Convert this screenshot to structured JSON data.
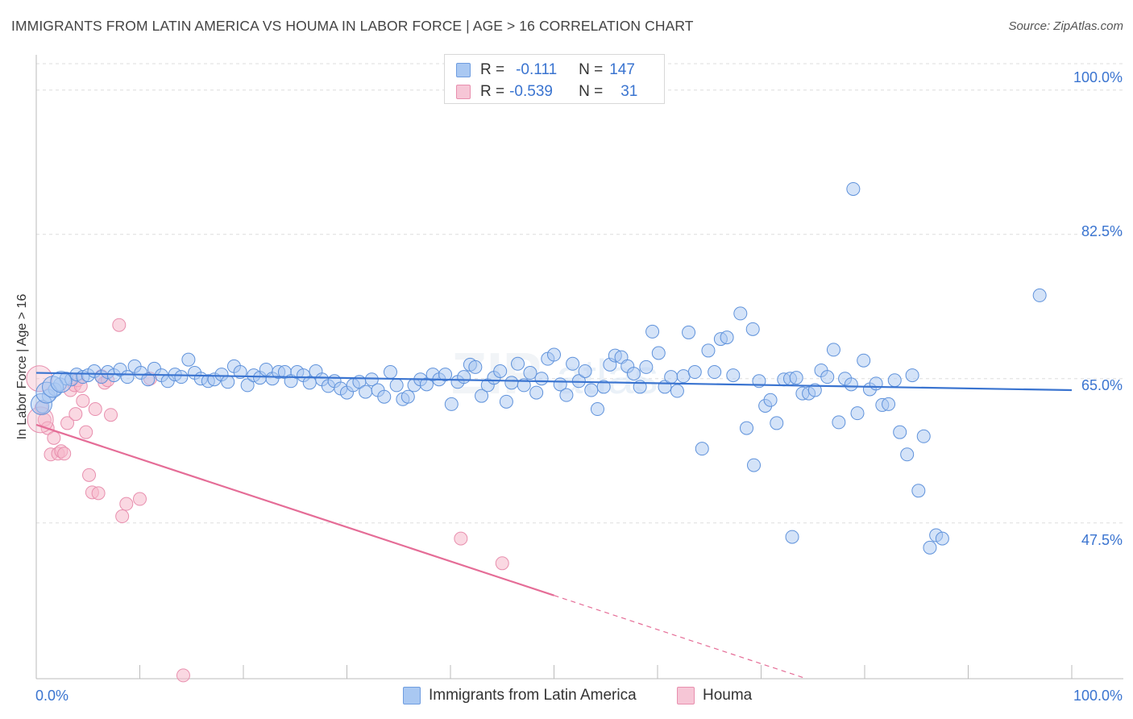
{
  "title": "IMMIGRANTS FROM LATIN AMERICA VS HOUMA IN LABOR FORCE | AGE > 16 CORRELATION CHART",
  "source": "Source: ZipAtlas.com",
  "colors": {
    "blue": "#3a74d0",
    "blue_fill": "#a9c8f2",
    "pink": "#e56d97",
    "pink_fill": "#f6b8cb",
    "axis_text": "#3a74d0",
    "grid": "#dddddd"
  },
  "legend": {
    "rows": [
      {
        "r_label": "R =",
        "r_value": "-0.111",
        "n_label": "N =",
        "n_value": "147"
      },
      {
        "r_label": "R =",
        "r_value": "-0.539",
        "n_label": "N =",
        "n_value": "31"
      }
    ]
  },
  "bottom_legend": {
    "series1": "Immigrants from Latin America",
    "series2": "Houma"
  },
  "chart_data": {
    "type": "scatter",
    "title": "IMMIGRANTS FROM LATIN AMERICA VS HOUMA IN LABOR FORCE | AGE > 16 CORRELATION CHART",
    "xlabel": "",
    "ylabel": "In Labor Force | Age > 16",
    "xlim": [
      0,
      100
    ],
    "ylim": [
      28.6,
      103.2
    ],
    "x_tick_labels": [
      "0.0%",
      "100.0%"
    ],
    "y_ticks": [
      47.5,
      65.0,
      82.5,
      100.0
    ],
    "y_tick_labels": [
      "47.5%",
      "65.0%",
      "82.5%",
      "100.0%"
    ],
    "grid": true,
    "legend_position": "top-center",
    "series": [
      {
        "name": "Immigrants from Latin America",
        "color": "#3a74d0",
        "trend": {
          "x": [
            0,
            100
          ],
          "y": [
            65.7,
            63.6
          ]
        },
        "points": [
          [
            0.6,
            61.6
          ],
          [
            1.2,
            62.9
          ],
          [
            1.8,
            63.7
          ],
          [
            2.3,
            64.3
          ],
          [
            2.9,
            65.0
          ],
          [
            3.4,
            64.9
          ],
          [
            3.9,
            65.5
          ],
          [
            4.5,
            65.2
          ],
          [
            5.0,
            65.4
          ],
          [
            5.6,
            65.9
          ],
          [
            6.3,
            65.2
          ],
          [
            6.9,
            65.8
          ],
          [
            7.5,
            65.4
          ],
          [
            8.1,
            66.1
          ],
          [
            8.8,
            65.2
          ],
          [
            9.5,
            66.5
          ],
          [
            10.1,
            65.7
          ],
          [
            10.8,
            64.9
          ],
          [
            11.4,
            66.2
          ],
          [
            12.1,
            65.4
          ],
          [
            12.7,
            64.7
          ],
          [
            13.4,
            65.5
          ],
          [
            14.0,
            65.2
          ],
          [
            14.7,
            67.3
          ],
          [
            15.3,
            65.7
          ],
          [
            15.9,
            65.0
          ],
          [
            16.6,
            64.7
          ],
          [
            17.2,
            64.9
          ],
          [
            17.9,
            65.5
          ],
          [
            18.5,
            64.6
          ],
          [
            19.1,
            66.5
          ],
          [
            19.7,
            65.8
          ],
          [
            20.4,
            64.2
          ],
          [
            21.0,
            65.4
          ],
          [
            21.6,
            65.1
          ],
          [
            22.2,
            66.1
          ],
          [
            22.8,
            65.0
          ],
          [
            23.4,
            65.8
          ],
          [
            24.0,
            65.8
          ],
          [
            24.6,
            64.7
          ],
          [
            25.2,
            65.8
          ],
          [
            25.8,
            65.4
          ],
          [
            26.4,
            64.5
          ],
          [
            27.0,
            65.9
          ],
          [
            27.6,
            64.9
          ],
          [
            28.2,
            64.1
          ],
          [
            28.8,
            64.7
          ],
          [
            29.4,
            63.8
          ],
          [
            30.0,
            63.3
          ],
          [
            30.6,
            64.2
          ],
          [
            31.2,
            64.6
          ],
          [
            31.8,
            63.4
          ],
          [
            32.4,
            64.9
          ],
          [
            33.0,
            63.6
          ],
          [
            33.6,
            62.8
          ],
          [
            34.2,
            65.8
          ],
          [
            34.8,
            64.2
          ],
          [
            35.4,
            62.5
          ],
          [
            35.9,
            62.8
          ],
          [
            36.5,
            64.2
          ],
          [
            37.1,
            64.9
          ],
          [
            37.7,
            64.3
          ],
          [
            38.3,
            65.5
          ],
          [
            38.9,
            64.9
          ],
          [
            39.5,
            65.5
          ],
          [
            40.1,
            61.9
          ],
          [
            40.7,
            64.6
          ],
          [
            41.3,
            65.2
          ],
          [
            41.9,
            66.7
          ],
          [
            42.4,
            66.4
          ],
          [
            43.0,
            62.9
          ],
          [
            43.6,
            64.2
          ],
          [
            44.2,
            65.1
          ],
          [
            44.8,
            65.9
          ],
          [
            45.4,
            62.2
          ],
          [
            45.9,
            64.5
          ],
          [
            46.5,
            66.8
          ],
          [
            47.1,
            64.2
          ],
          [
            47.7,
            65.7
          ],
          [
            48.3,
            63.3
          ],
          [
            48.8,
            65.0
          ],
          [
            49.4,
            67.4
          ],
          [
            50.0,
            67.9
          ],
          [
            50.6,
            64.3
          ],
          [
            51.2,
            63.0
          ],
          [
            51.8,
            66.8
          ],
          [
            52.4,
            64.7
          ],
          [
            53.0,
            65.9
          ],
          [
            53.6,
            63.6
          ],
          [
            54.2,
            61.3
          ],
          [
            54.8,
            64.0
          ],
          [
            55.4,
            66.7
          ],
          [
            55.9,
            67.8
          ],
          [
            56.5,
            67.6
          ],
          [
            57.1,
            66.5
          ],
          [
            57.7,
            65.6
          ],
          [
            58.3,
            64.0
          ],
          [
            58.9,
            66.4
          ],
          [
            59.5,
            70.7
          ],
          [
            60.1,
            68.1
          ],
          [
            60.7,
            64.0
          ],
          [
            61.3,
            65.2
          ],
          [
            61.9,
            63.5
          ],
          [
            62.5,
            65.3
          ],
          [
            63.0,
            70.6
          ],
          [
            63.6,
            65.8
          ],
          [
            64.3,
            56.5
          ],
          [
            64.9,
            68.4
          ],
          [
            65.5,
            65.8
          ],
          [
            66.1,
            69.8
          ],
          [
            66.7,
            70.0
          ],
          [
            67.3,
            65.4
          ],
          [
            68.0,
            72.9
          ],
          [
            68.6,
            59.0
          ],
          [
            69.2,
            71.0
          ],
          [
            69.8,
            64.7
          ],
          [
            70.4,
            61.7
          ],
          [
            70.9,
            62.4
          ],
          [
            71.5,
            59.6
          ],
          [
            72.2,
            64.9
          ],
          [
            72.8,
            65.0
          ],
          [
            73.4,
            65.1
          ],
          [
            74.0,
            63.2
          ],
          [
            74.6,
            63.2
          ],
          [
            75.2,
            63.6
          ],
          [
            75.8,
            66.0
          ],
          [
            76.4,
            65.2
          ],
          [
            77.0,
            68.5
          ],
          [
            77.5,
            59.7
          ],
          [
            78.1,
            65.0
          ],
          [
            78.7,
            64.3
          ],
          [
            79.3,
            60.8
          ],
          [
            79.9,
            67.2
          ],
          [
            80.5,
            63.7
          ],
          [
            81.1,
            64.4
          ],
          [
            81.7,
            61.8
          ],
          [
            82.3,
            61.9
          ],
          [
            82.9,
            64.8
          ],
          [
            83.4,
            58.5
          ],
          [
            84.1,
            55.8
          ],
          [
            84.6,
            65.4
          ],
          [
            85.2,
            51.4
          ],
          [
            85.7,
            58.0
          ],
          [
            86.3,
            44.5
          ],
          [
            86.9,
            46.0
          ],
          [
            87.5,
            45.6
          ],
          [
            73.0,
            45.8
          ],
          [
            78.9,
            88.0
          ],
          [
            96.9,
            75.1
          ],
          [
            69.3,
            54.5
          ]
        ],
        "large_points": [
          [
            0.5,
            61.9
          ],
          [
            1.0,
            63.3
          ],
          [
            1.6,
            64.0
          ],
          [
            2.4,
            64.6
          ]
        ]
      },
      {
        "name": "Houma",
        "color": "#e56d97",
        "trend_solid": {
          "x": [
            0,
            50
          ],
          "y": [
            59.4,
            38.7
          ]
        },
        "trend_dashed": {
          "x": [
            50,
            100
          ],
          "y": [
            38.7,
            18.0
          ]
        },
        "points": [
          [
            0.5,
            61.5
          ],
          [
            0.8,
            60.0
          ],
          [
            1.1,
            59.0
          ],
          [
            1.4,
            55.8
          ],
          [
            1.7,
            57.8
          ],
          [
            2.1,
            55.9
          ],
          [
            2.4,
            56.2
          ],
          [
            2.7,
            55.9
          ],
          [
            3.0,
            59.6
          ],
          [
            3.3,
            63.6
          ],
          [
            3.7,
            64.2
          ],
          [
            4.0,
            64.8
          ],
          [
            4.3,
            64.1
          ],
          [
            3.8,
            60.7
          ],
          [
            4.5,
            62.3
          ],
          [
            4.8,
            58.5
          ],
          [
            5.1,
            53.3
          ],
          [
            5.4,
            51.2
          ],
          [
            5.7,
            61.3
          ],
          [
            6.0,
            51.1
          ],
          [
            6.3,
            65.3
          ],
          [
            6.6,
            64.5
          ],
          [
            6.9,
            64.8
          ],
          [
            7.2,
            60.6
          ],
          [
            8.0,
            71.5
          ],
          [
            8.3,
            48.3
          ],
          [
            8.7,
            49.8
          ],
          [
            10.0,
            50.4
          ],
          [
            11.0,
            65.0
          ],
          [
            41.0,
            45.6
          ],
          [
            45.0,
            42.6
          ],
          [
            14.2,
            29.0
          ]
        ],
        "large_points": [
          [
            0.3,
            65.0
          ],
          [
            0.4,
            60.0
          ]
        ]
      }
    ]
  }
}
